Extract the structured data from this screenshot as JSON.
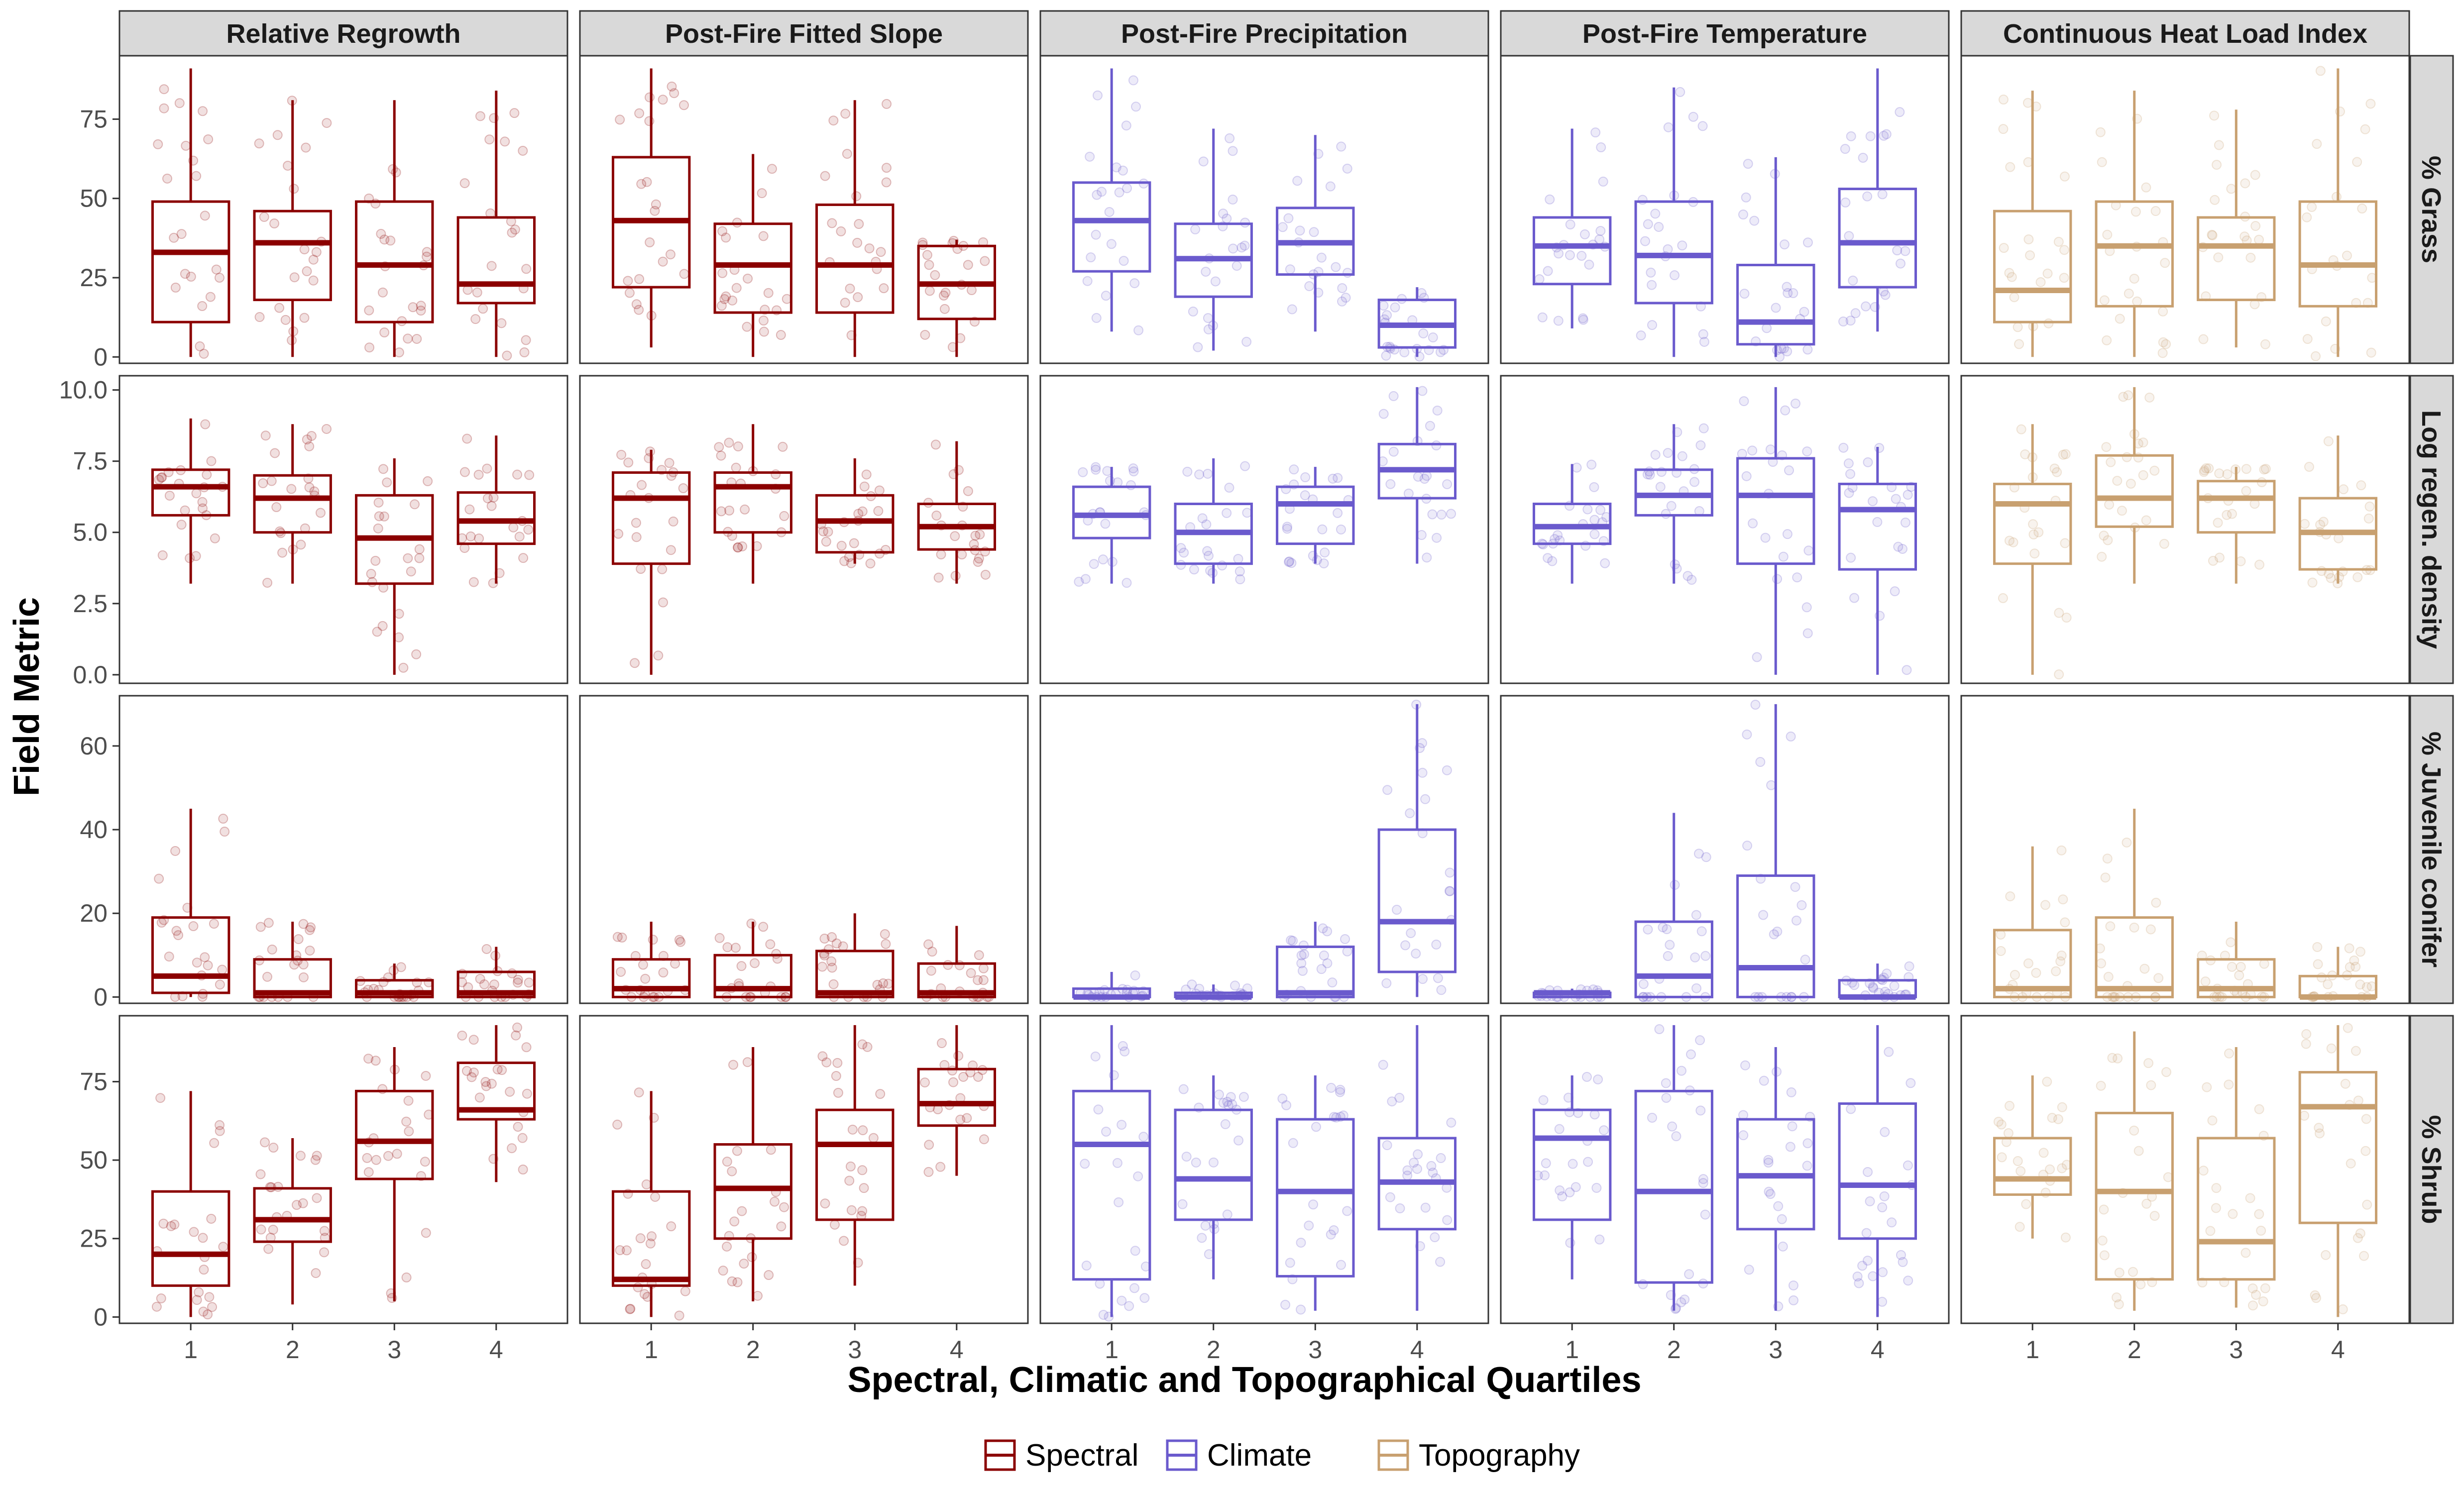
{
  "chart_data": {
    "type": "boxplot",
    "xlabel": "Spectral, Climatic and Topographical Quartiles",
    "ylabel": "Field Metric",
    "categories": [
      "1",
      "2",
      "3",
      "4"
    ],
    "columns": [
      {
        "title": "Relative Regrowth",
        "group": "Spectral"
      },
      {
        "title": "Post-Fire Fitted Slope",
        "group": "Spectral"
      },
      {
        "title": "Post-Fire Precipitation",
        "group": "Climate"
      },
      {
        "title": "Post-Fire Temperature",
        "group": "Climate"
      },
      {
        "title": "Continuous Heat Load Index",
        "group": "Topography"
      }
    ],
    "legend": {
      "position": "bottom",
      "items": [
        {
          "label": "Spectral",
          "color": "#8B0000"
        },
        {
          "label": "Climate",
          "color": "#6A5ACD"
        },
        {
          "label": "Topography",
          "color": "#C8A070"
        }
      ]
    },
    "rows": [
      {
        "title": "% Grass",
        "ylim": [
          -2,
          95
        ],
        "yticks": [
          0,
          25,
          50,
          75
        ],
        "ytick_labels": [
          "0",
          "25",
          "50",
          "75"
        ],
        "boxes": [
          [
            [
              0,
              11,
              33,
              49,
              91
            ],
            [
              0,
              18,
              36,
              46,
              81
            ],
            [
              0,
              11,
              29,
              49,
              81
            ],
            [
              0,
              17,
              23,
              44,
              84
            ]
          ],
          [
            [
              3,
              22,
              43,
              63,
              91
            ],
            [
              0,
              14,
              29,
              42,
              64
            ],
            [
              0,
              14,
              29,
              48,
              81
            ],
            [
              0,
              12,
              23,
              35,
              37
            ]
          ],
          [
            [
              8,
              27,
              43,
              55,
              91
            ],
            [
              2,
              19,
              31,
              42,
              72
            ],
            [
              8,
              26,
              36,
              47,
              70
            ],
            [
              0,
              3,
              10,
              18,
              22
            ]
          ],
          [
            [
              9,
              23,
              35,
              44,
              72
            ],
            [
              0,
              17,
              32,
              49,
              85
            ],
            [
              0,
              4,
              11,
              29,
              63
            ],
            [
              8,
              22,
              36,
              53,
              91
            ]
          ],
          [
            [
              0,
              11,
              21,
              46,
              84
            ],
            [
              0,
              16,
              35,
              49,
              84
            ],
            [
              3,
              18,
              35,
              44,
              78
            ],
            [
              0,
              16,
              29,
              49,
              91
            ]
          ]
        ]
      },
      {
        "title": "Log regen. density",
        "ylim": [
          -0.3,
          10.5
        ],
        "yticks": [
          0,
          2.5,
          5,
          7.5,
          10
        ],
        "ytick_labels": [
          "0.0",
          "2.5",
          "5.0",
          "7.5",
          "10.0"
        ],
        "boxes": [
          [
            [
              3.2,
              5.6,
              6.6,
              7.2,
              9.0
            ],
            [
              3.2,
              5.0,
              6.2,
              7.0,
              8.8
            ],
            [
              0,
              3.2,
              4.8,
              6.3,
              7.6
            ],
            [
              3.2,
              4.6,
              5.4,
              6.4,
              8.4
            ]
          ],
          [
            [
              0,
              3.9,
              6.2,
              7.1,
              7.9
            ],
            [
              3.2,
              5.0,
              6.6,
              7.1,
              8.8
            ],
            [
              3.9,
              4.3,
              5.4,
              6.3,
              7.6
            ],
            [
              3.2,
              4.4,
              5.2,
              6.0,
              8.2
            ]
          ],
          [
            [
              3.2,
              4.8,
              5.6,
              6.6,
              7.3
            ],
            [
              3.2,
              3.9,
              5.0,
              6.0,
              7.6
            ],
            [
              3.9,
              4.6,
              6.0,
              6.6,
              7.3
            ],
            [
              3.9,
              6.2,
              7.2,
              8.1,
              10.1
            ]
          ],
          [
            [
              3.2,
              4.6,
              5.2,
              6.0,
              7.4
            ],
            [
              3.2,
              5.6,
              6.3,
              7.2,
              8.8
            ],
            [
              0,
              3.9,
              6.3,
              7.6,
              10.1
            ],
            [
              0,
              3.7,
              5.8,
              6.7,
              8.0
            ]
          ],
          [
            [
              0,
              3.9,
              6.0,
              6.7,
              8.8
            ],
            [
              3.2,
              5.2,
              6.2,
              7.7,
              10.1
            ],
            [
              3.2,
              5.0,
              6.2,
              6.8,
              7.3
            ],
            [
              3.2,
              3.7,
              5.0,
              6.2,
              8.4
            ]
          ]
        ]
      },
      {
        "title": "% Juvenile conifer",
        "ylim": [
          -1.5,
          72
        ],
        "yticks": [
          0,
          20,
          40,
          60
        ],
        "ytick_labels": [
          "0",
          "20",
          "40",
          "60"
        ],
        "boxes": [
          [
            [
              0,
              1,
              5,
              19,
              45
            ],
            [
              0,
              0,
              1,
              9,
              18
            ],
            [
              0,
              0,
              1,
              4,
              8
            ],
            [
              0,
              0,
              1,
              6,
              12
            ]
          ],
          [
            [
              0,
              0,
              2,
              9,
              18
            ],
            [
              0,
              0,
              2,
              10,
              18
            ],
            [
              0,
              0,
              1,
              11,
              20
            ],
            [
              0,
              0,
              1,
              8,
              17
            ]
          ],
          [
            [
              0,
              0,
              0,
              2,
              6
            ],
            [
              0,
              0,
              0,
              1,
              3
            ],
            [
              0,
              0,
              1,
              12,
              18
            ],
            [
              0,
              6,
              18,
              40,
              70
            ]
          ],
          [
            [
              0,
              0,
              1,
              1,
              2
            ],
            [
              0,
              0,
              5,
              18,
              44
            ],
            [
              0,
              0,
              7,
              29,
              70
            ],
            [
              0,
              0,
              0,
              4,
              8
            ]
          ],
          [
            [
              0,
              0,
              2,
              16,
              36
            ],
            [
              0,
              0,
              2,
              19,
              45
            ],
            [
              0,
              0,
              2,
              9,
              18
            ],
            [
              0,
              0,
              0,
              5,
              12
            ]
          ]
        ]
      },
      {
        "title": "% Shrub",
        "ylim": [
          -2,
          96
        ],
        "yticks": [
          0,
          25,
          50,
          75
        ],
        "ytick_labels": [
          "0",
          "25",
          "50",
          "75"
        ],
        "boxes": [
          [
            [
              0,
              10,
              20,
              40,
              72
            ],
            [
              4,
              24,
              31,
              41,
              57
            ],
            [
              5,
              44,
              56,
              72,
              86
            ],
            [
              43,
              63,
              66,
              81,
              93
            ]
          ],
          [
            [
              0,
              10,
              12,
              40,
              72
            ],
            [
              5,
              25,
              41,
              55,
              86
            ],
            [
              10,
              31,
              55,
              66,
              93
            ],
            [
              45,
              61,
              68,
              79,
              93
            ]
          ],
          [
            [
              0,
              12,
              55,
              72,
              93
            ],
            [
              12,
              31,
              44,
              66,
              77
            ],
            [
              2,
              13,
              40,
              63,
              77
            ],
            [
              2,
              28,
              43,
              57,
              93
            ]
          ],
          [
            [
              12,
              31,
              57,
              66,
              77
            ],
            [
              2,
              11,
              40,
              72,
              93
            ],
            [
              2,
              28,
              45,
              63,
              86
            ],
            [
              0,
              25,
              42,
              68,
              93
            ]
          ],
          [
            [
              25,
              39,
              44,
              57,
              77
            ],
            [
              2,
              12,
              40,
              65,
              91
            ],
            [
              3,
              12,
              24,
              57,
              86
            ],
            [
              0,
              30,
              67,
              78,
              93
            ]
          ]
        ]
      }
    ]
  }
}
